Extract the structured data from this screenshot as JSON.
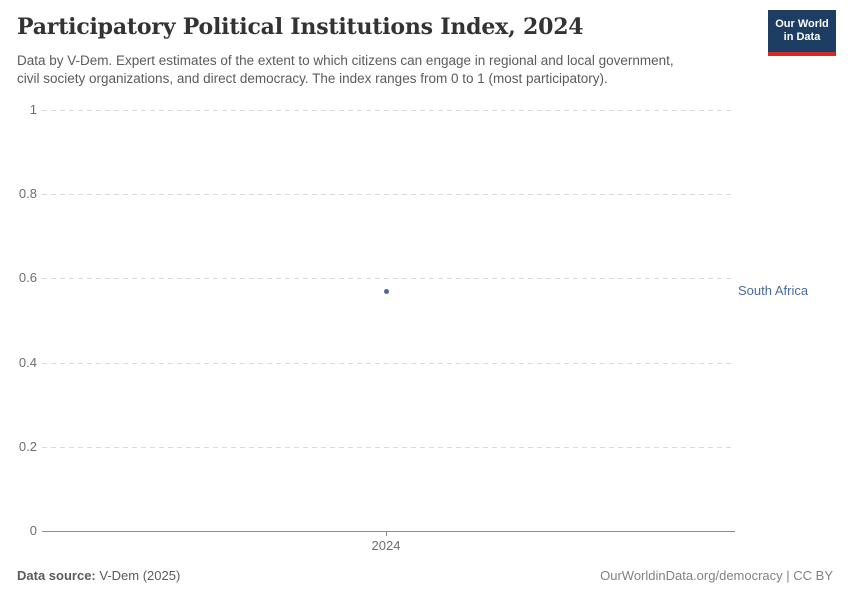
{
  "header": {
    "title": "Participatory Political Institutions Index, 2024",
    "subtitle_line1": "Data by V-Dem. Expert estimates of the extent to which citizens can engage in regional and local government,",
    "subtitle_line2": "civil society organizations, and direct democracy. The index ranges from 0 to 1 (most participatory).",
    "logo": {
      "line1": "Our World",
      "line2": "in Data",
      "bg_color": "#1d3d63",
      "accent_color": "#d42b21"
    }
  },
  "chart_data": {
    "type": "scatter",
    "title": "Participatory Political Institutions Index, 2024",
    "x": [
      2024
    ],
    "series": [
      {
        "name": "South Africa",
        "values": [
          0.57
        ],
        "color": "#4c6a9c"
      }
    ],
    "xlabel": "",
    "ylabel": "",
    "ylim": [
      0,
      1
    ],
    "yticks": [
      "0",
      "0.2",
      "0.4",
      "0.6",
      "0.8",
      "1"
    ],
    "xticks": [
      "2024"
    ],
    "grid": "horizontal-dashed",
    "legend_position": "label-right-of-plot"
  },
  "footer": {
    "source_label": "Data source:",
    "source_value": " V-Dem (2025)",
    "credit": "OurWorldinData.org/democracy | CC BY"
  }
}
